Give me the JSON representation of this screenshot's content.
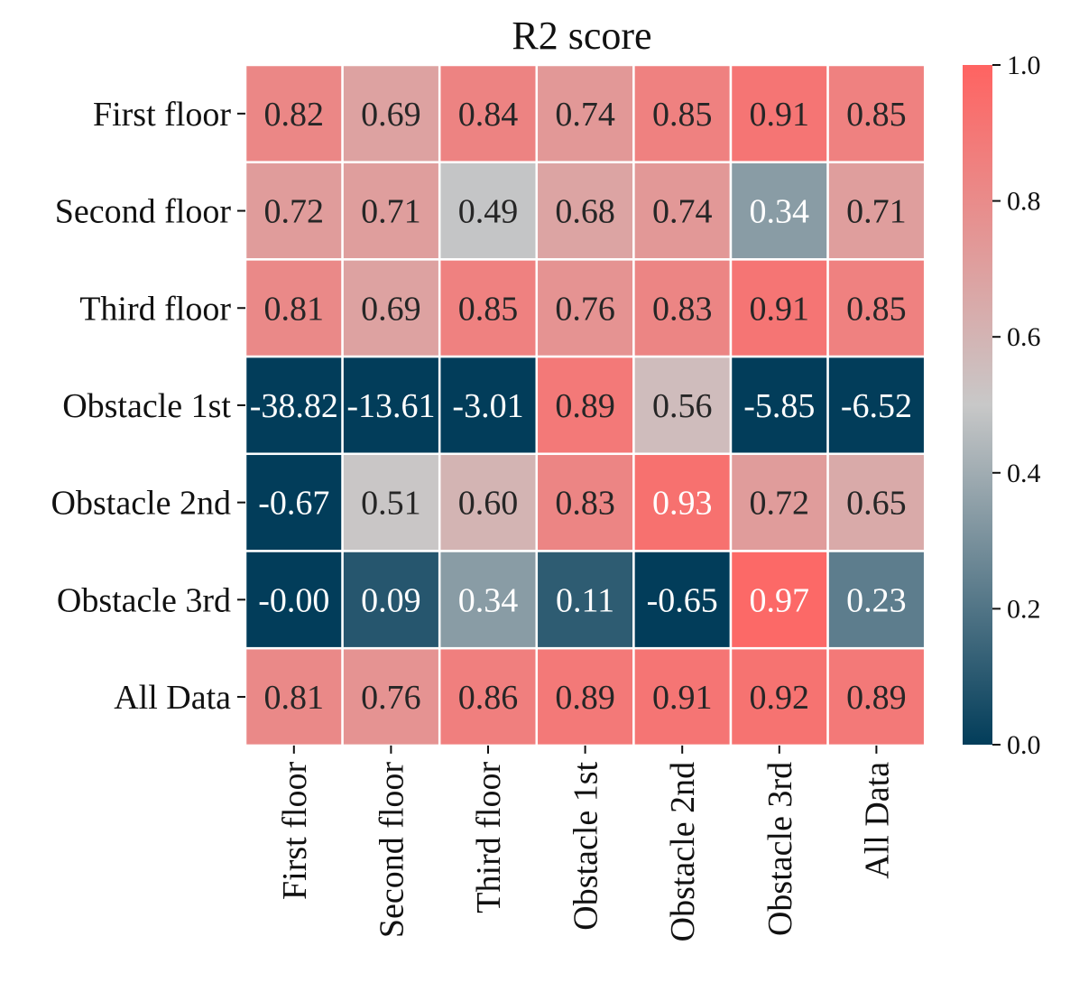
{
  "chart_data": {
    "type": "heatmap",
    "title": "R2 score",
    "row_labels": [
      "First floor",
      "Second floor",
      "Third floor",
      "Obstacle 1st",
      "Obstacle 2nd",
      "Obstacle 3rd",
      "All Data"
    ],
    "col_labels": [
      "First floor",
      "Second floor",
      "Third floor",
      "Obstacle 1st",
      "Obstacle 2nd",
      "Obstacle 3rd",
      "All Data"
    ],
    "values": [
      [
        0.82,
        0.69,
        0.84,
        0.74,
        0.85,
        0.91,
        0.85
      ],
      [
        0.72,
        0.71,
        0.49,
        0.68,
        0.74,
        0.34,
        0.71
      ],
      [
        0.81,
        0.69,
        0.85,
        0.76,
        0.83,
        0.91,
        0.85
      ],
      [
        -38.82,
        -13.61,
        -3.01,
        0.89,
        0.56,
        -5.85,
        -6.52
      ],
      [
        -0.67,
        0.51,
        0.6,
        0.83,
        0.93,
        0.72,
        0.65
      ],
      [
        -0.0,
        0.09,
        0.34,
        0.11,
        -0.65,
        0.97,
        0.23
      ],
      [
        0.81,
        0.76,
        0.86,
        0.89,
        0.91,
        0.92,
        0.89
      ]
    ],
    "cell_text": [
      [
        "0.82",
        "0.69",
        "0.84",
        "0.74",
        "0.85",
        "0.91",
        "0.85"
      ],
      [
        "0.72",
        "0.71",
        "0.49",
        "0.68",
        "0.74",
        "0.34",
        "0.71"
      ],
      [
        "0.81",
        "0.69",
        "0.85",
        "0.76",
        "0.83",
        "0.91",
        "0.85"
      ],
      [
        "-38.82",
        "-13.61",
        "-3.01",
        "0.89",
        "0.56",
        "-5.85",
        "-6.52"
      ],
      [
        "-0.67",
        "0.51",
        "0.60",
        "0.83",
        "0.93",
        "0.72",
        "0.65"
      ],
      [
        "-0.00",
        "0.09",
        "0.34",
        "0.11",
        "-0.65",
        "0.97",
        "0.23"
      ],
      [
        "0.81",
        "0.76",
        "0.86",
        "0.89",
        "0.91",
        "0.92",
        "0.89"
      ]
    ],
    "colorbar": {
      "range": [
        0.0,
        1.0
      ],
      "ticks": [
        0.0,
        0.2,
        0.4,
        0.6,
        0.8,
        1.0
      ],
      "tick_labels": [
        "0.0",
        "0.2",
        "0.4",
        "0.6",
        "0.8",
        "1.0"
      ]
    },
    "colormap": {
      "low": "#023d5a",
      "mid": "#c8c8c8",
      "high": "#ff6361"
    },
    "cell_border_color": "#ffffff",
    "text_dark": "#262626",
    "text_light": "#ffffff"
  }
}
